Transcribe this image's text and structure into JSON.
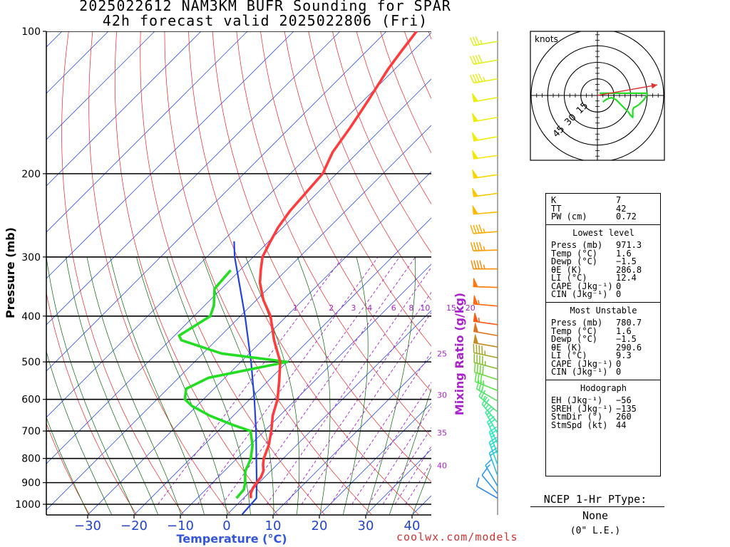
{
  "header": {
    "title_line1": "2025022612 NAM3KM BUFR Sounding for SPAR",
    "title_line2": "42h forecast valid 2025022806 (Fri)"
  },
  "footer": {
    "credit": "coolwx.com/models"
  },
  "ptype": {
    "title": "NCEP 1-Hr PType:",
    "value": "None",
    "note": "(0\" L.E.)"
  },
  "colors": {
    "temperature": "#ff3b3b",
    "dewpoint": "#22dd22",
    "parcel": "#2244dd",
    "isobar": "#000000",
    "isotherm": "#3355dd",
    "dry_adiabat": "#ee2222",
    "moist_adiabat": "#006600",
    "mixing_ratio": "#aa22cc",
    "hodograph_storm": "#dd3333"
  },
  "stats": {
    "indices": [
      {
        "label": "K",
        "value": "7"
      },
      {
        "label": "TT",
        "value": "42"
      },
      {
        "label": "PW (cm)",
        "value": "0.72"
      }
    ],
    "lowest_level": {
      "title": "Lowest level",
      "rows": [
        {
          "label": "Press (mb)",
          "value": "971.3"
        },
        {
          "label": "Temp (°C)",
          "value": "1.6"
        },
        {
          "label": "Dewp (°C)",
          "value": "−1.5"
        },
        {
          "label": "θE (K)",
          "value": "286.8"
        },
        {
          "label": "LI (°C)",
          "value": "12.4"
        },
        {
          "label": "CAPE (Jkg⁻¹)",
          "value": "0"
        },
        {
          "label": "CIN (Jkg⁻¹)",
          "value": "0"
        }
      ]
    },
    "most_unstable": {
      "title": "Most Unstable",
      "rows": [
        {
          "label": "Press (mb)",
          "value": "780.7"
        },
        {
          "label": "Temp (°C)",
          "value": "1.6"
        },
        {
          "label": "Dewp (°C)",
          "value": "−1.5"
        },
        {
          "label": "θE (K)",
          "value": "290.6"
        },
        {
          "label": "LI (°C)",
          "value": "9.3"
        },
        {
          "label": "CAPE (Jkg⁻¹)",
          "value": "0"
        },
        {
          "label": "CIN (Jkg⁻¹)",
          "value": "0"
        }
      ]
    },
    "hodograph": {
      "title": "Hodograph",
      "rows": [
        {
          "label": "EH (Jkg⁻¹)",
          "value": "−56"
        },
        {
          "label": "SREH (Jkg⁻¹)",
          "value": "−135"
        },
        {
          "label": "StmDir (°)",
          "value": "260"
        },
        {
          "label": "StmSpd (kt)",
          "value": "44"
        }
      ]
    }
  },
  "chart_data": [
    {
      "type": "skew-t",
      "xlabel": "Temperature (°C)",
      "ylabel": "Pressure (mb)",
      "y_scale": "log",
      "xlim": [
        -38,
        42
      ],
      "ylim": [
        1050,
        100
      ],
      "x_ticks": [
        -30,
        -20,
        -10,
        0,
        10,
        20,
        30,
        40
      ],
      "x_tick_labels": [
        "−30",
        "−20",
        "−10",
        "0",
        "10",
        "20",
        "30",
        "40"
      ],
      "y_ticks": [
        100,
        200,
        300,
        400,
        500,
        600,
        700,
        800,
        900,
        1000
      ],
      "y_tick_labels": [
        "100",
        "200",
        "300",
        "400",
        "500",
        "600",
        "700",
        "800",
        "900",
        "1000"
      ],
      "mixing_ratio_label": "Mixing Ratio (g/kg)",
      "mixing_ratio_lines": [
        1,
        2,
        3,
        4,
        6,
        8,
        10,
        15,
        20,
        25,
        30,
        35,
        40
      ],
      "mixing_ratio_labels": [
        "1",
        "2",
        "3",
        "4",
        "6",
        "8",
        "10",
        "15",
        "20",
        "25",
        "30",
        "35",
        "40"
      ],
      "temperature_profile": [
        {
          "p": 971,
          "t": 1.6
        },
        {
          "p": 950,
          "t": 0.6
        },
        {
          "p": 930,
          "t": 0.0
        },
        {
          "p": 900,
          "t": -0.5
        },
        {
          "p": 875,
          "t": -0.8
        },
        {
          "p": 850,
          "t": -1.6
        },
        {
          "p": 825,
          "t": -3.0
        },
        {
          "p": 800,
          "t": -4.2
        },
        {
          "p": 750,
          "t": -6.0
        },
        {
          "p": 700,
          "t": -8.5
        },
        {
          "p": 650,
          "t": -11.5
        },
        {
          "p": 600,
          "t": -14.0
        },
        {
          "p": 550,
          "t": -17.5
        },
        {
          "p": 500,
          "t": -21.5
        },
        {
          "p": 450,
          "t": -27.5
        },
        {
          "p": 400,
          "t": -33.5
        },
        {
          "p": 370,
          "t": -38.5
        },
        {
          "p": 340,
          "t": -43.0
        },
        {
          "p": 320,
          "t": -45.5
        },
        {
          "p": 300,
          "t": -48.0
        },
        {
          "p": 280,
          "t": -49.5
        },
        {
          "p": 260,
          "t": -51.0
        },
        {
          "p": 240,
          "t": -52.0
        },
        {
          "p": 220,
          "t": -52.5
        },
        {
          "p": 200,
          "t": -53.0
        },
        {
          "p": 180,
          "t": -55.5
        },
        {
          "p": 160,
          "t": -57.0
        },
        {
          "p": 140,
          "t": -59.0
        },
        {
          "p": 120,
          "t": -61.5
        },
        {
          "p": 110,
          "t": -62.5
        },
        {
          "p": 100,
          "t": -63.5
        }
      ],
      "dewpoint_profile": [
        {
          "p": 971,
          "t": -1.5
        },
        {
          "p": 930,
          "t": -1.8
        },
        {
          "p": 900,
          "t": -3.0
        },
        {
          "p": 870,
          "t": -4.5
        },
        {
          "p": 850,
          "t": -5.5
        },
        {
          "p": 825,
          "t": -6.2
        },
        {
          "p": 800,
          "t": -7.0
        },
        {
          "p": 750,
          "t": -9.5
        },
        {
          "p": 700,
          "t": -13.0
        },
        {
          "p": 680,
          "t": -18.0
        },
        {
          "p": 650,
          "t": -25.0
        },
        {
          "p": 620,
          "t": -31.0
        },
        {
          "p": 600,
          "t": -34.0
        },
        {
          "p": 570,
          "t": -36.0
        },
        {
          "p": 540,
          "t": -33.5
        },
        {
          "p": 500,
          "t": -20.0
        },
        {
          "p": 480,
          "t": -36.0
        },
        {
          "p": 450,
          "t": -47.5
        },
        {
          "p": 440,
          "t": -49.0
        },
        {
          "p": 400,
          "t": -46.5
        },
        {
          "p": 380,
          "t": -48.0
        },
        {
          "p": 350,
          "t": -51.5
        },
        {
          "p": 320,
          "t": -52.0
        }
      ],
      "parcel_profile": [
        {
          "p": 1050,
          "t": 3.2
        },
        {
          "p": 971,
          "t": 2.8
        },
        {
          "p": 900,
          "t": -0.5
        },
        {
          "p": 800,
          "t": -5.8
        },
        {
          "p": 700,
          "t": -11.8
        },
        {
          "p": 600,
          "t": -19.0
        },
        {
          "p": 500,
          "t": -27.8
        },
        {
          "p": 400,
          "t": -39.0
        },
        {
          "p": 300,
          "t": -54.0
        },
        {
          "p": 278,
          "t": -57.5
        }
      ]
    },
    {
      "type": "wind-barbs",
      "units": "knots",
      "levels": [
        {
          "p": 105,
          "dir": 260,
          "spd": 35
        },
        {
          "p": 115,
          "dir": 260,
          "spd": 40
        },
        {
          "p": 126,
          "dir": 260,
          "spd": 45
        },
        {
          "p": 138,
          "dir": 260,
          "spd": 50
        },
        {
          "p": 152,
          "dir": 260,
          "spd": 50
        },
        {
          "p": 167,
          "dir": 260,
          "spd": 50
        },
        {
          "p": 183,
          "dir": 262,
          "spd": 50
        },
        {
          "p": 201,
          "dir": 262,
          "spd": 50
        },
        {
          "p": 220,
          "dir": 262,
          "spd": 50
        },
        {
          "p": 241,
          "dir": 265,
          "spd": 50
        },
        {
          "p": 265,
          "dir": 265,
          "spd": 45
        },
        {
          "p": 290,
          "dir": 268,
          "spd": 45
        },
        {
          "p": 318,
          "dir": 270,
          "spd": 45
        },
        {
          "p": 348,
          "dir": 272,
          "spd": 50
        },
        {
          "p": 381,
          "dir": 275,
          "spd": 55
        },
        {
          "p": 417,
          "dir": 278,
          "spd": 55
        },
        {
          "p": 440,
          "dir": 280,
          "spd": 50
        },
        {
          "p": 465,
          "dir": 280,
          "spd": 50
        },
        {
          "p": 490,
          "dir": 282,
          "spd": 45
        },
        {
          "p": 517,
          "dir": 285,
          "spd": 45
        },
        {
          "p": 545,
          "dir": 288,
          "spd": 40
        },
        {
          "p": 575,
          "dir": 292,
          "spd": 35
        },
        {
          "p": 605,
          "dir": 300,
          "spd": 30
        },
        {
          "p": 638,
          "dir": 310,
          "spd": 25
        },
        {
          "p": 672,
          "dir": 320,
          "spd": 25
        },
        {
          "p": 708,
          "dir": 330,
          "spd": 25
        },
        {
          "p": 745,
          "dir": 335,
          "spd": 25
        },
        {
          "p": 785,
          "dir": 340,
          "spd": 25
        },
        {
          "p": 826,
          "dir": 340,
          "spd": 25
        },
        {
          "p": 870,
          "dir": 340,
          "spd": 20
        },
        {
          "p": 916,
          "dir": 330,
          "spd": 15
        },
        {
          "p": 950,
          "dir": 320,
          "spd": 10
        },
        {
          "p": 971,
          "dir": 300,
          "spd": 10
        }
      ]
    },
    {
      "type": "hodograph",
      "units": "knots",
      "title": "knots",
      "rings": [
        15,
        30,
        45
      ],
      "ring_labels": [
        "15",
        "30",
        "45"
      ],
      "max_speed": 60,
      "trace": [
        {
          "u": 5,
          "v": -6
        },
        {
          "u": 6,
          "v": -5
        },
        {
          "u": 9,
          "v": -3
        },
        {
          "u": 13,
          "v": -2
        },
        {
          "u": 17,
          "v": -4
        },
        {
          "u": 21,
          "v": -8
        },
        {
          "u": 25,
          "v": -12
        },
        {
          "u": 28,
          "v": -15
        },
        {
          "u": 30,
          "v": -18
        },
        {
          "u": 32,
          "v": -20
        },
        {
          "u": 32,
          "v": -13
        },
        {
          "u": 33,
          "v": -11
        },
        {
          "u": 35,
          "v": -10
        },
        {
          "u": 38,
          "v": -8
        },
        {
          "u": 42,
          "v": -4
        },
        {
          "u": 44,
          "v": -1
        },
        {
          "u": 45,
          "v": 1
        },
        {
          "u": 45,
          "v": 2
        },
        {
          "u": 7,
          "v": 2
        },
        {
          "u": 2,
          "v": 2
        }
      ],
      "storm_motion": {
        "dir": 260,
        "spd": 44
      }
    }
  ]
}
